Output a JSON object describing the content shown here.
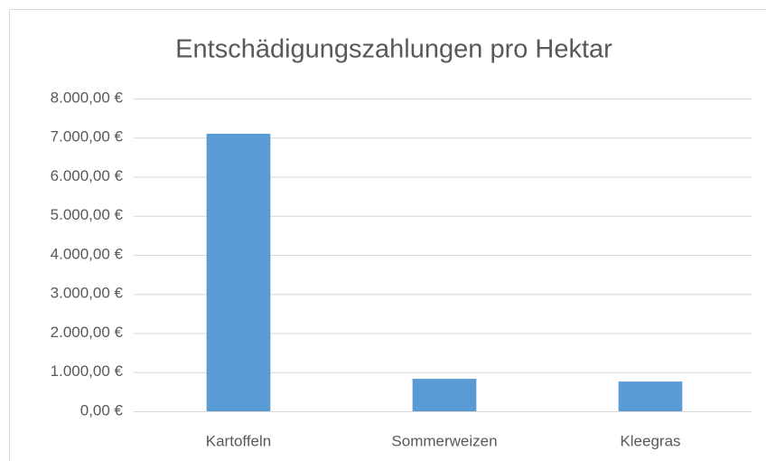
{
  "chart_data": {
    "type": "bar",
    "title": "Entschädigungszahlungen pro Hektar",
    "categories": [
      "Kartoffeln",
      "Sommerweizen",
      "Kleegras"
    ],
    "values": [
      7100,
      830,
      760
    ],
    "color": "#5b9bd5",
    "ylim": [
      0,
      8000
    ],
    "yticks": [
      {
        "value": 0,
        "label": "0,00 €"
      },
      {
        "value": 1000,
        "label": "1.000,00 €"
      },
      {
        "value": 2000,
        "label": "2.000,00 €"
      },
      {
        "value": 3000,
        "label": "3.000,00 €"
      },
      {
        "value": 4000,
        "label": "4.000,00 €"
      },
      {
        "value": 5000,
        "label": "5.000,00 €"
      },
      {
        "value": 6000,
        "label": "6.000,00 €"
      },
      {
        "value": 7000,
        "label": "7.000,00 €"
      },
      {
        "value": 8000,
        "label": "8.000,00 €"
      }
    ],
    "grid": true
  }
}
